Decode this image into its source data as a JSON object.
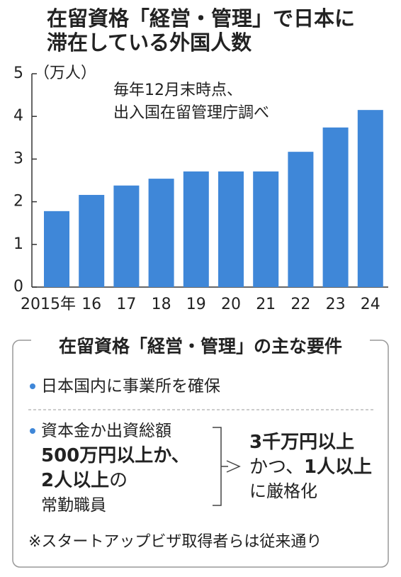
{
  "chart_data": {
    "type": "bar",
    "title": [
      "在留資格「経営・管理」で日本に",
      "滞在している外国人数"
    ],
    "y_unit": "（万人）",
    "annotation": [
      "毎年12月末時点、",
      "出入国在留管理庁調べ"
    ],
    "categories": [
      "2015年",
      "16",
      "17",
      "18",
      "19",
      "20",
      "21",
      "22",
      "23",
      "24"
    ],
    "values": [
      1.78,
      2.16,
      2.38,
      2.54,
      2.71,
      2.71,
      2.71,
      3.17,
      3.74,
      4.15
    ],
    "color": "#3f87d8",
    "ylim": [
      0,
      5
    ],
    "yticks": [
      0,
      1,
      2,
      3,
      4,
      5
    ]
  },
  "requirements": {
    "title": "在留資格「経営・管理」の主な要件",
    "items": [
      {
        "lines": [
          [
            {
              "text": "日本国内に事業所を確保",
              "bold": false
            }
          ]
        ]
      },
      {
        "lines": [
          [
            {
              "text": "資本金か出資総額",
              "bold": false
            }
          ],
          [
            {
              "text": "500万円以上か、",
              "bold": true
            }
          ],
          [
            {
              "text": "2人以上",
              "bold": true
            },
            {
              "text": "の",
              "bold": false
            }
          ],
          [
            {
              "text": "常勤職員",
              "bold": false
            }
          ]
        ]
      }
    ],
    "result": [
      [
        {
          "text": "3千万円以上",
          "bold": true
        }
      ],
      [
        {
          "text": "かつ、",
          "bold": false
        },
        {
          "text": "1人以上",
          "bold": true
        }
      ],
      [
        {
          "text": "に厳格化",
          "bold": false
        }
      ]
    ],
    "note": "※スタートアップビザ取得者らは従来通り"
  }
}
